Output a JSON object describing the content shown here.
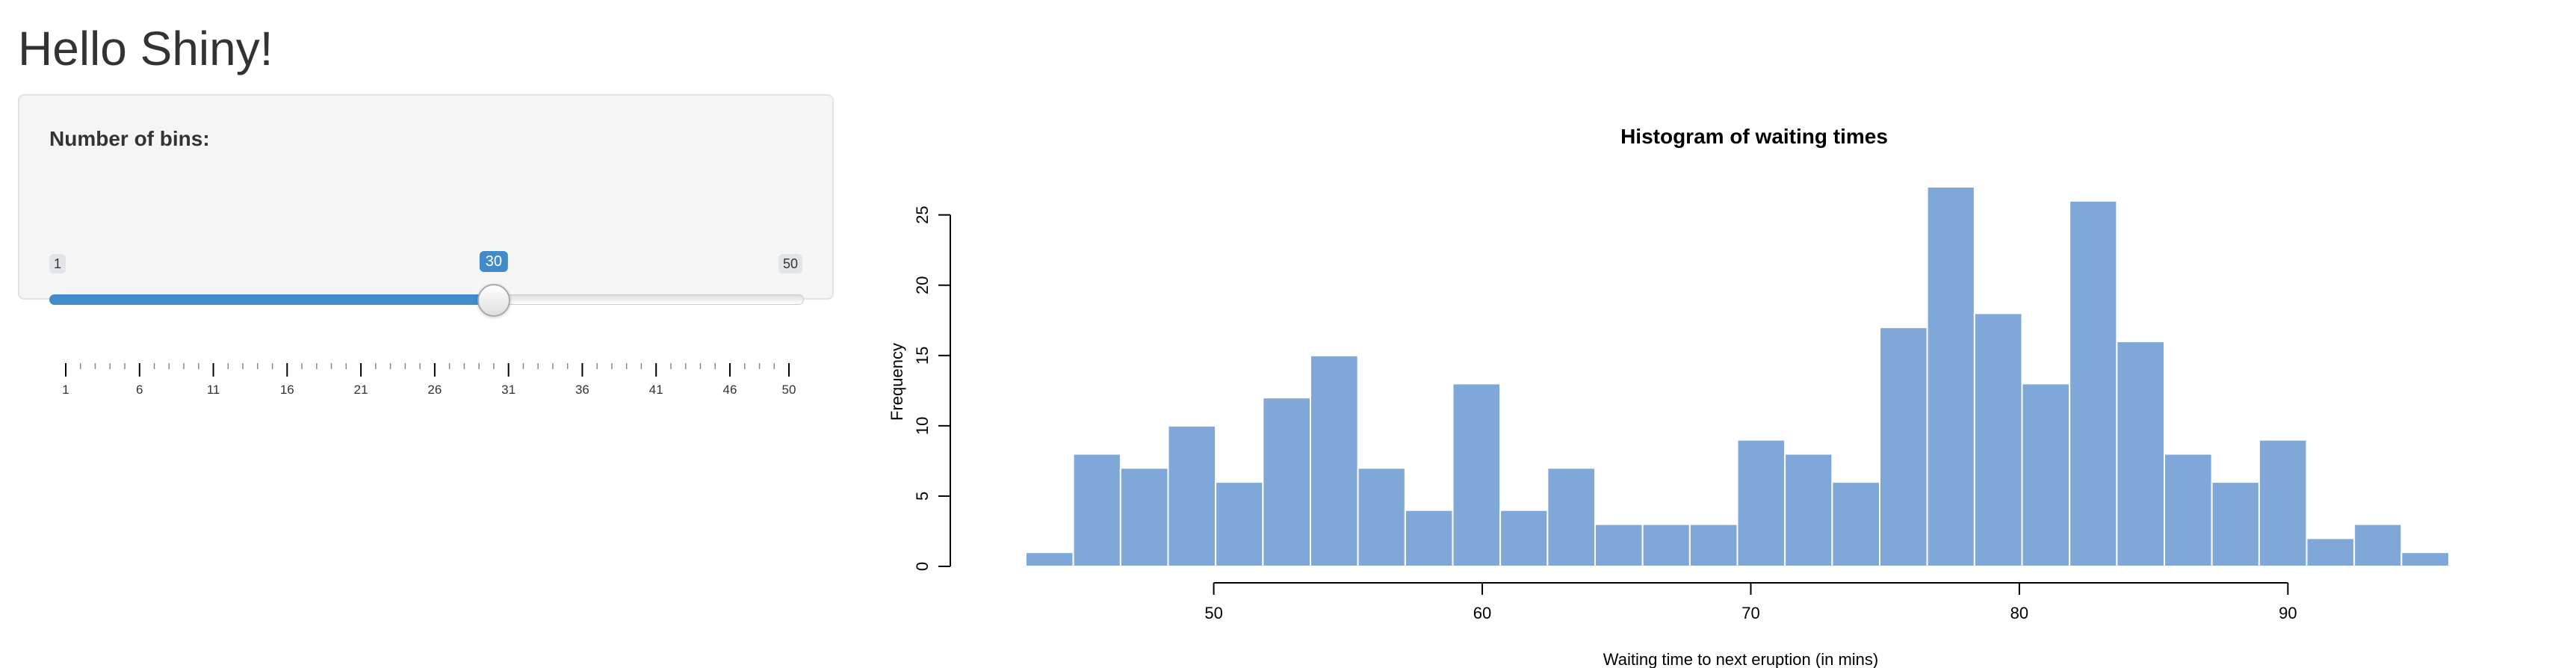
{
  "app": {
    "title": "Hello Shiny!"
  },
  "sidebar": {
    "slider": {
      "label": "Number of bins:",
      "min": 1,
      "max": 50,
      "value": 30,
      "min_label": "1",
      "max_label": "50",
      "value_label": "30",
      "grid_labels": [
        "1",
        "6",
        "11",
        "16",
        "21",
        "26",
        "31",
        "36",
        "41",
        "46",
        "50"
      ],
      "accent_color": "#428bca"
    }
  },
  "chart_data": {
    "type": "bar",
    "title": "Histogram of waiting times",
    "xlabel": "Waiting time to next eruption (in mins)",
    "ylabel": "Frequency",
    "bin_edges": [
      43,
      44.77,
      46.53,
      48.3,
      50.07,
      51.83,
      53.6,
      55.37,
      57.13,
      58.9,
      60.67,
      62.43,
      64.2,
      65.97,
      67.73,
      69.5,
      71.27,
      73.03,
      74.8,
      76.57,
      78.33,
      80.1,
      81.87,
      83.63,
      85.4,
      87.17,
      88.93,
      90.7,
      92.47,
      94.23,
      96
    ],
    "values": [
      1,
      8,
      7,
      10,
      6,
      12,
      15,
      7,
      4,
      13,
      4,
      7,
      3,
      3,
      3,
      9,
      8,
      6,
      17,
      27,
      18,
      13,
      26,
      16,
      8,
      6,
      9,
      2,
      3,
      1
    ],
    "x_ticks": [
      "50",
      "60",
      "70",
      "80",
      "90"
    ],
    "x_tick_values": [
      50,
      60,
      70,
      80,
      90
    ],
    "y_ticks": [
      "0",
      "5",
      "10",
      "15",
      "20",
      "25"
    ],
    "y_tick_values": [
      0,
      5,
      10,
      15,
      20,
      25
    ],
    "ylim": [
      0,
      27
    ],
    "xlim": [
      43,
      96
    ],
    "bar_color": "#7fa7d7",
    "border_color": "#ffffff",
    "grid": false
  }
}
